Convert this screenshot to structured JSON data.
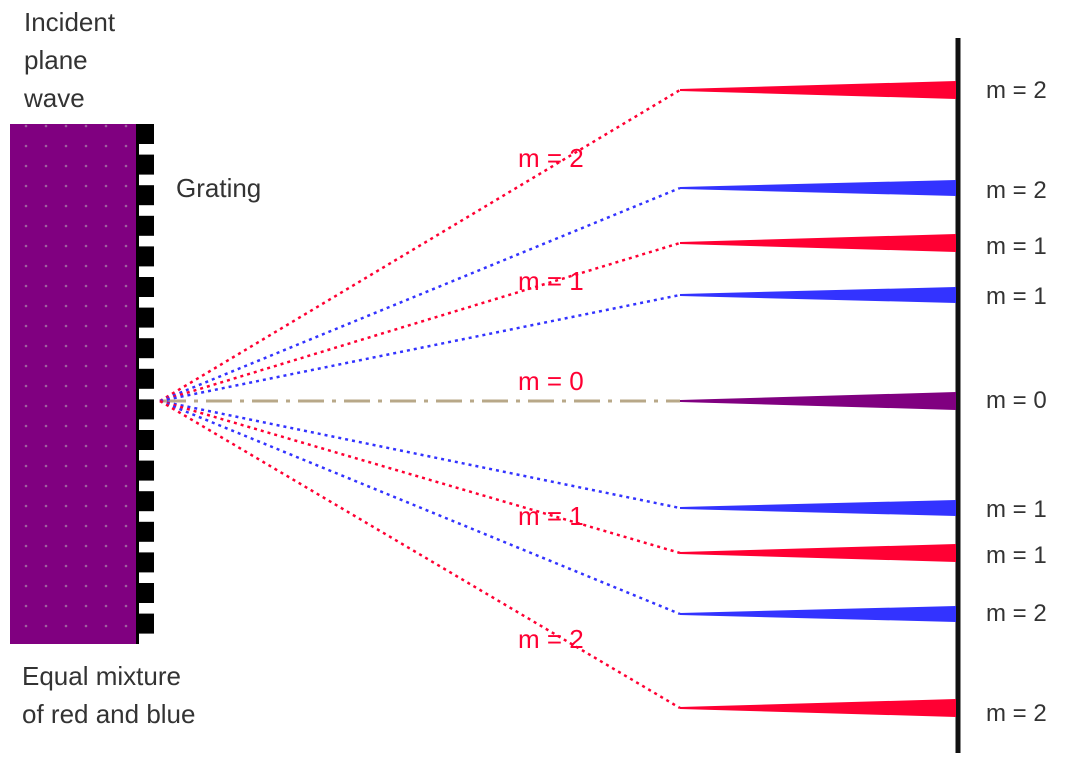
{
  "labels": {
    "incident_line1": "Incident",
    "incident_line2": "plane",
    "incident_line3": "wave",
    "grating": "Grating",
    "mixture_line1": "Equal mixture",
    "mixture_line2": "of red and blue"
  },
  "colors": {
    "mixture": "#800080",
    "red": "#ff0033",
    "blue": "#3333ff",
    "central_dash": "#b8a888",
    "grating_slits": "#000000",
    "screen": "#111111",
    "text": "#333333"
  },
  "order_labels_mid": [
    {
      "id": "m2-up",
      "text": "m = 2",
      "color": "red"
    },
    {
      "id": "m1-up",
      "text": "m = 1",
      "color": "red"
    },
    {
      "id": "m0",
      "text": "m = 0",
      "color": "red"
    },
    {
      "id": "m1-down",
      "text": "m = 1",
      "color": "red"
    },
    {
      "id": "m2-down",
      "text": "m = 2",
      "color": "red"
    }
  ],
  "beams": [
    {
      "id": "red-m2-up",
      "color": "red",
      "order": "m = 2"
    },
    {
      "id": "blue-m2-up",
      "color": "blue",
      "order": "m = 2"
    },
    {
      "id": "red-m1-up",
      "color": "red",
      "order": "m = 1"
    },
    {
      "id": "blue-m1-up",
      "color": "blue",
      "order": "m = 1"
    },
    {
      "id": "center-m0",
      "color": "mixture",
      "order": "m = 0"
    },
    {
      "id": "blue-m1-down",
      "color": "blue",
      "order": "m = 1"
    },
    {
      "id": "red-m1-down",
      "color": "red",
      "order": "m = 1"
    },
    {
      "id": "blue-m2-down",
      "color": "blue",
      "order": "m = 2"
    },
    {
      "id": "red-m2-down",
      "color": "red",
      "order": "m = 2"
    }
  ]
}
